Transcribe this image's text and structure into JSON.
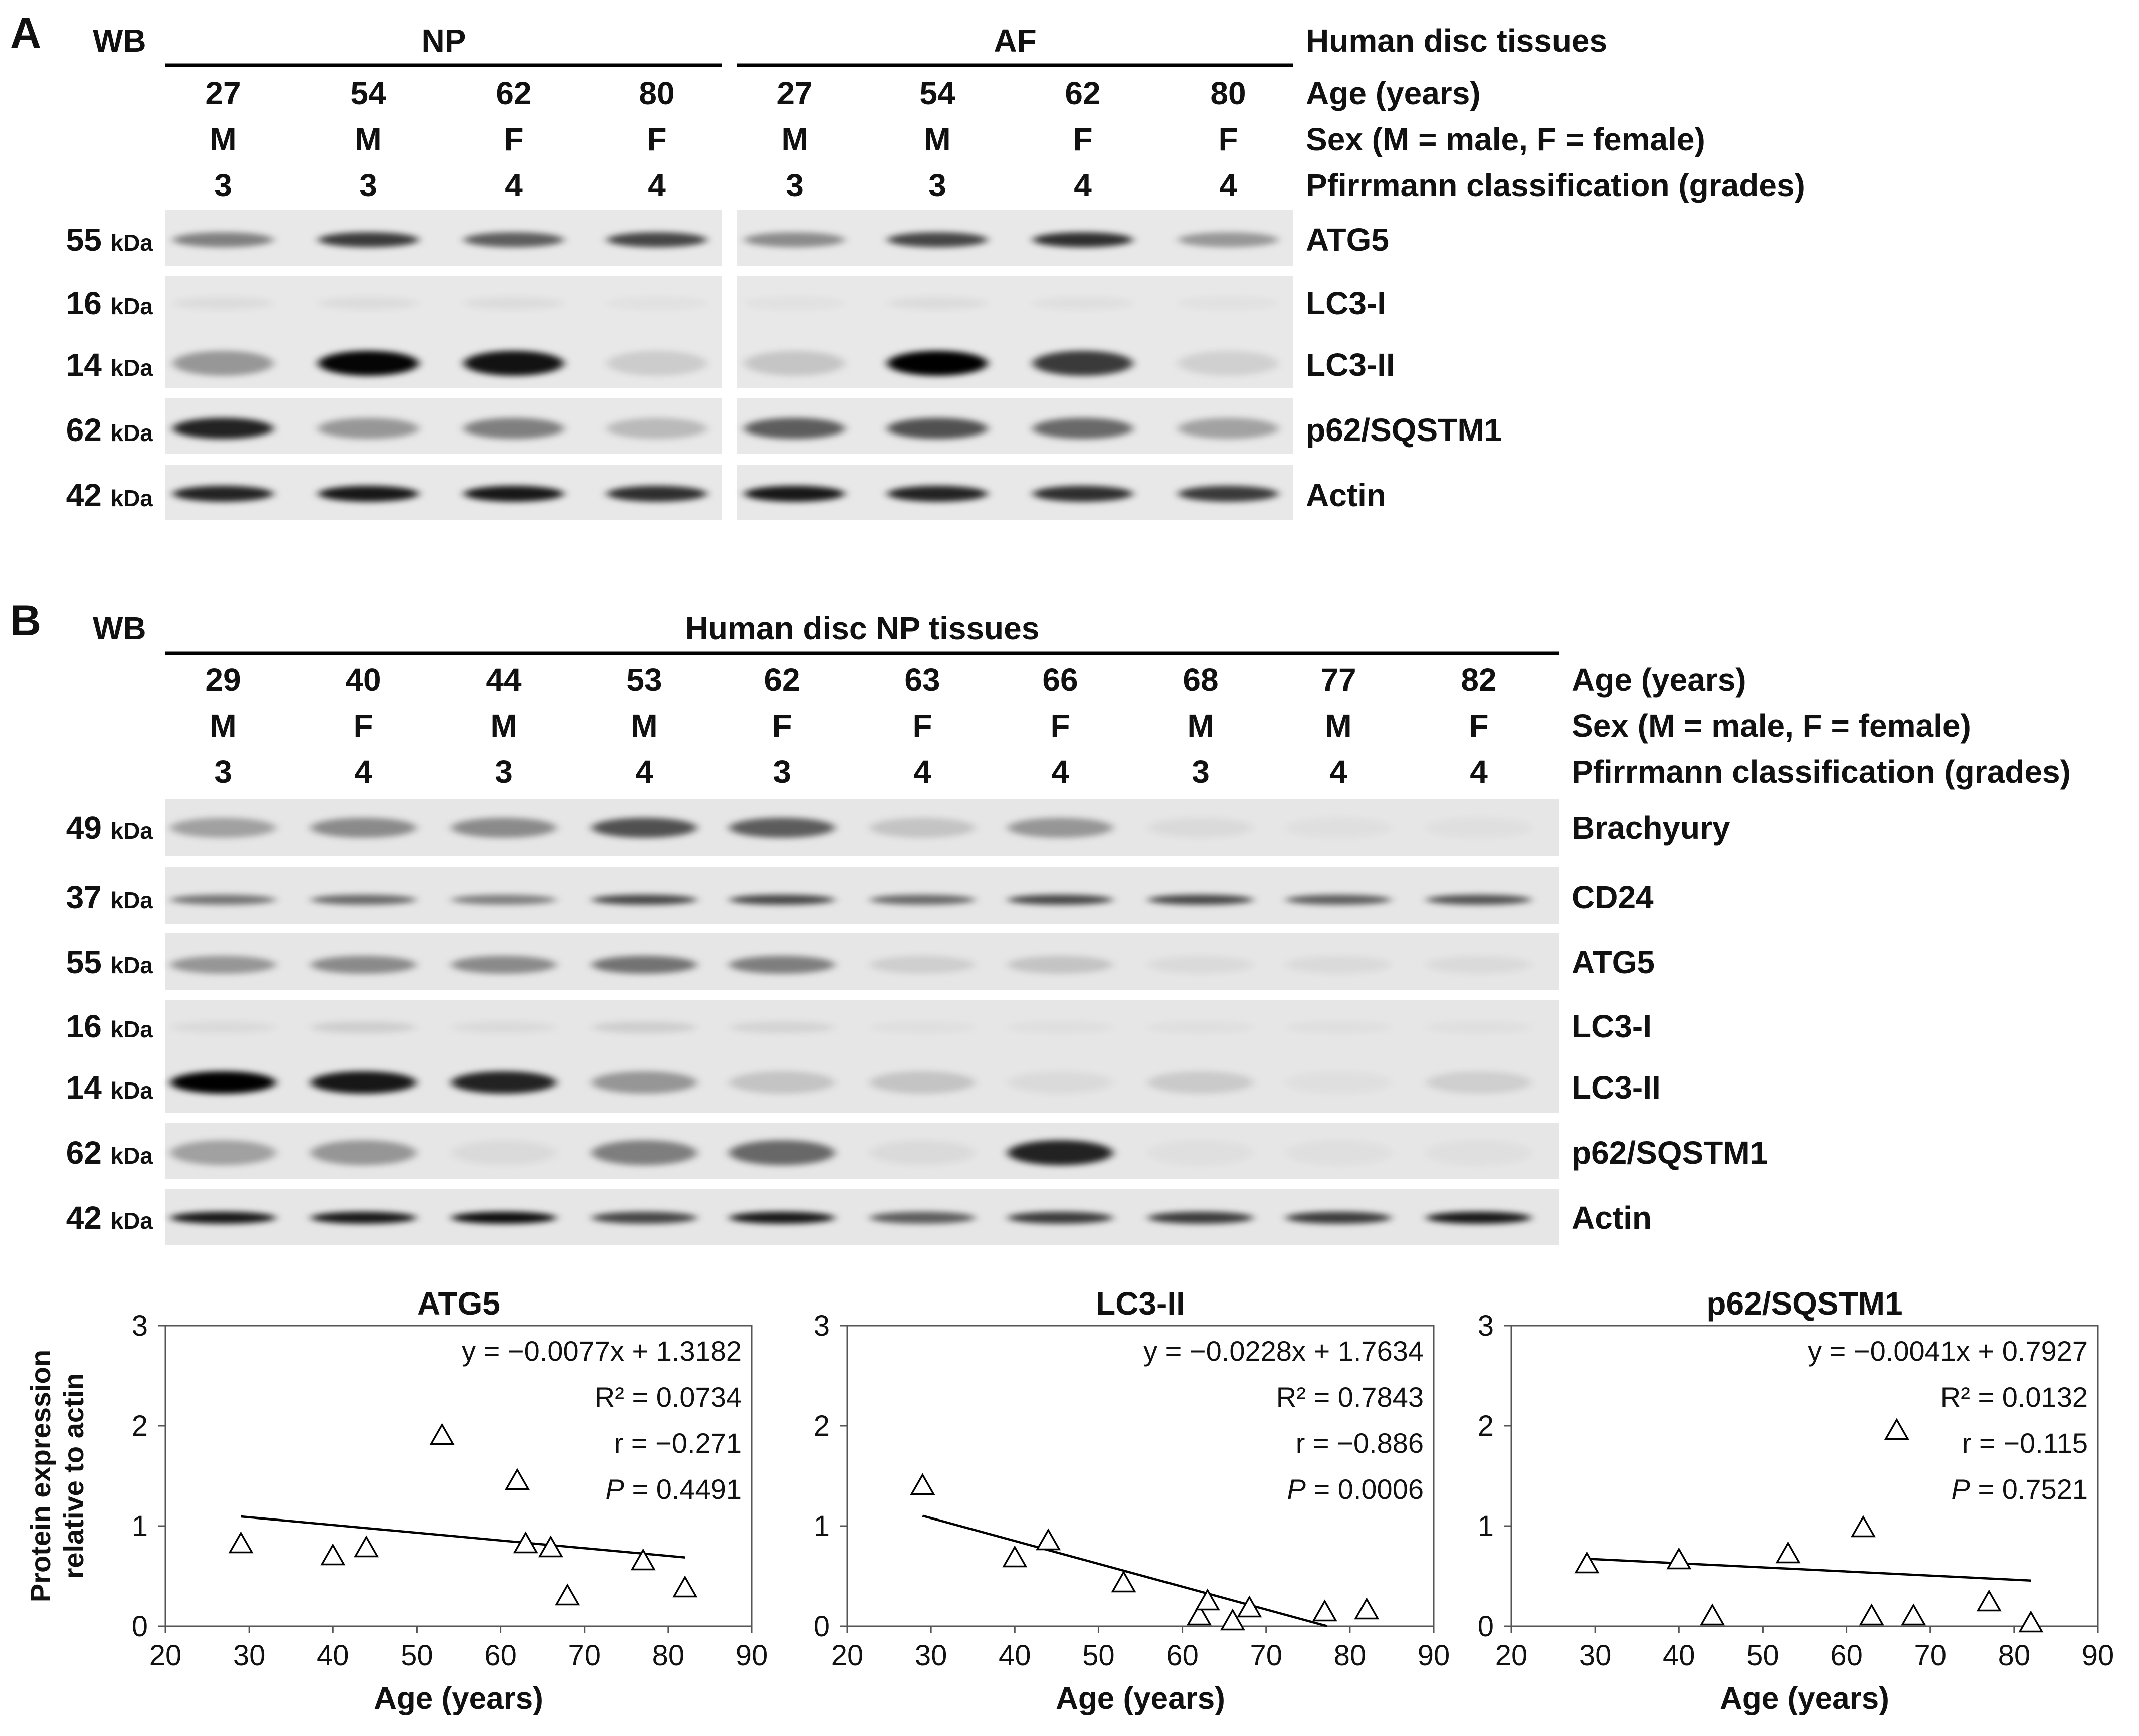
{
  "panel_a": {
    "letter": "A",
    "wb": "WB",
    "groups": [
      {
        "label": "NP",
        "ages": [
          "27",
          "54",
          "62",
          "80"
        ],
        "sexes": [
          "M",
          "M",
          "F",
          "F"
        ],
        "grades": [
          "3",
          "3",
          "4",
          "4"
        ]
      },
      {
        "label": "AF",
        "ages": [
          "27",
          "54",
          "62",
          "80"
        ],
        "sexes": [
          "M",
          "M",
          "F",
          "F"
        ],
        "grades": [
          "3",
          "3",
          "4",
          "4"
        ]
      }
    ],
    "right_labels": [
      "Human disc tissues",
      "Age (years)",
      "Sex (M = male, F = female)",
      "Pfirrmann classification (grades)"
    ],
    "markers": [
      {
        "size": "55",
        "unit": "kDa",
        "protein": "ATG5"
      },
      {
        "size": "16",
        "unit": "kDa",
        "protein": "LC3-I"
      },
      {
        "size": "14",
        "unit": "kDa",
        "protein": "LC3-II"
      },
      {
        "size": "62",
        "unit": "kDa",
        "protein": "p62/SQSTM1"
      },
      {
        "size": "42",
        "unit": "kDa",
        "protein": "Actin"
      }
    ],
    "band_intensity": {
      "ATG5": [
        0.45,
        0.75,
        0.6,
        0.7,
        0.4,
        0.7,
        0.8,
        0.35
      ],
      "LC3-I": [
        0.05,
        0.05,
        0.05,
        0.03,
        0.03,
        0.05,
        0.04,
        0.03
      ],
      "LC3-II": [
        0.35,
        0.98,
        0.92,
        0.12,
        0.15,
        1.0,
        0.75,
        0.1
      ],
      "p62/SQSTM1": [
        0.85,
        0.35,
        0.45,
        0.2,
        0.6,
        0.65,
        0.55,
        0.3
      ],
      "Actin": [
        0.85,
        0.9,
        0.9,
        0.8,
        0.9,
        0.85,
        0.8,
        0.75
      ]
    }
  },
  "panel_b": {
    "letter": "B",
    "wb": "WB",
    "group_label": "Human disc NP tissues",
    "ages": [
      "29",
      "40",
      "44",
      "53",
      "62",
      "63",
      "66",
      "68",
      "77",
      "82"
    ],
    "sexes": [
      "M",
      "F",
      "M",
      "M",
      "F",
      "F",
      "F",
      "M",
      "M",
      "F"
    ],
    "grades": [
      "3",
      "4",
      "3",
      "4",
      "3",
      "4",
      "4",
      "3",
      "4",
      "4"
    ],
    "right_labels": [
      "Age (years)",
      "Sex (M = male, F = female)",
      "Pfirrmann classification (grades)"
    ],
    "markers": [
      {
        "size": "49",
        "unit": "kDa",
        "protein": "Brachyury"
      },
      {
        "size": "37",
        "unit": "kDa",
        "protein": "CD24"
      },
      {
        "size": "55",
        "unit": "kDa",
        "protein": "ATG5"
      },
      {
        "size": "16",
        "unit": "kDa",
        "protein": "LC3-I"
      },
      {
        "size": "14",
        "unit": "kDa",
        "protein": "LC3-II"
      },
      {
        "size": "62",
        "unit": "kDa",
        "protein": "p62/SQSTM1"
      },
      {
        "size": "42",
        "unit": "kDa",
        "protein": "Actin"
      }
    ],
    "band_intensity": {
      "Brachyury": [
        0.3,
        0.4,
        0.4,
        0.65,
        0.6,
        0.15,
        0.35,
        0.05,
        0.03,
        0.03
      ],
      "CD24": [
        0.5,
        0.55,
        0.45,
        0.7,
        0.7,
        0.55,
        0.7,
        0.7,
        0.6,
        0.65
      ],
      "ATG5": [
        0.35,
        0.4,
        0.4,
        0.5,
        0.45,
        0.1,
        0.15,
        0.05,
        0.05,
        0.05
      ],
      "LC3-I": [
        0.05,
        0.1,
        0.05,
        0.1,
        0.08,
        0.03,
        0.03,
        0.03,
        0.03,
        0.03
      ],
      "LC3-II": [
        1.0,
        0.9,
        0.85,
        0.35,
        0.15,
        0.15,
        0.05,
        0.12,
        0.03,
        0.1
      ],
      "p62/SQSTM1": [
        0.3,
        0.35,
        0.05,
        0.45,
        0.55,
        0.05,
        0.85,
        0.03,
        0.03,
        0.03
      ],
      "Actin": [
        0.9,
        0.9,
        0.95,
        0.7,
        0.9,
        0.6,
        0.75,
        0.75,
        0.75,
        0.9
      ]
    }
  },
  "chart_data": [
    {
      "type": "scatter",
      "title": "ATG5",
      "xlabel": "Age (years)",
      "ylabel": "Protein expression relative to actin",
      "xlim": [
        20,
        90
      ],
      "ylim": [
        0,
        3
      ],
      "xticks": [
        20,
        30,
        40,
        50,
        60,
        70,
        80,
        90
      ],
      "yticks": [
        0,
        1,
        2,
        3
      ],
      "points": [
        [
          29,
          0.82
        ],
        [
          40,
          0.7
        ],
        [
          44,
          0.78
        ],
        [
          53,
          1.9
        ],
        [
          62,
          1.45
        ],
        [
          63,
          0.82
        ],
        [
          66,
          0.78
        ],
        [
          68,
          0.3
        ],
        [
          77,
          0.65
        ],
        [
          82,
          0.38
        ]
      ],
      "trendline": {
        "slope": -0.0077,
        "intercept": 1.3182,
        "x_range": [
          29,
          82
        ]
      },
      "annotations": [
        "y = −0.0077x + 1.3182",
        "R² = 0.0734",
        "r = −0.271",
        "P = 0.4491"
      ]
    },
    {
      "type": "scatter",
      "title": "LC3-II",
      "xlabel": "Age (years)",
      "ylabel": "",
      "xlim": [
        20,
        90
      ],
      "ylim": [
        0,
        3
      ],
      "xticks": [
        20,
        30,
        40,
        50,
        60,
        70,
        80,
        90
      ],
      "yticks": [
        0,
        1,
        2,
        3
      ],
      "points": [
        [
          29,
          1.4
        ],
        [
          40,
          0.68
        ],
        [
          44,
          0.85
        ],
        [
          53,
          0.43
        ],
        [
          62,
          0.1
        ],
        [
          63,
          0.25
        ],
        [
          66,
          0.05
        ],
        [
          68,
          0.18
        ],
        [
          77,
          0.14
        ],
        [
          82,
          0.16
        ]
      ],
      "trendline": {
        "slope": -0.0228,
        "intercept": 1.7634,
        "x_range": [
          29,
          77.3
        ]
      },
      "annotations": [
        "y = −0.0228x + 1.7634",
        "R² = 0.7843",
        "r = −0.886",
        "P = 0.0006"
      ]
    },
    {
      "type": "scatter",
      "title": "p62/SQSTM1",
      "xlabel": "Age (years)",
      "ylabel": "",
      "xlim": [
        20,
        90
      ],
      "ylim": [
        0,
        3
      ],
      "xticks": [
        20,
        30,
        40,
        50,
        60,
        70,
        80,
        90
      ],
      "yticks": [
        0,
        1,
        2,
        3
      ],
      "points": [
        [
          29,
          0.62
        ],
        [
          40,
          0.66
        ],
        [
          44,
          0.1
        ],
        [
          53,
          0.72
        ],
        [
          62,
          0.98
        ],
        [
          63,
          0.1
        ],
        [
          66,
          1.95
        ],
        [
          68,
          0.1
        ],
        [
          77,
          0.24
        ],
        [
          82,
          0.03
        ]
      ],
      "trendline": {
        "slope": -0.0041,
        "intercept": 0.7927,
        "x_range": [
          29,
          82
        ]
      },
      "annotations": [
        "y = −0.0041x + 0.7927",
        "R² = 0.0132",
        "r = −0.115",
        "P = 0.7521"
      ]
    }
  ]
}
